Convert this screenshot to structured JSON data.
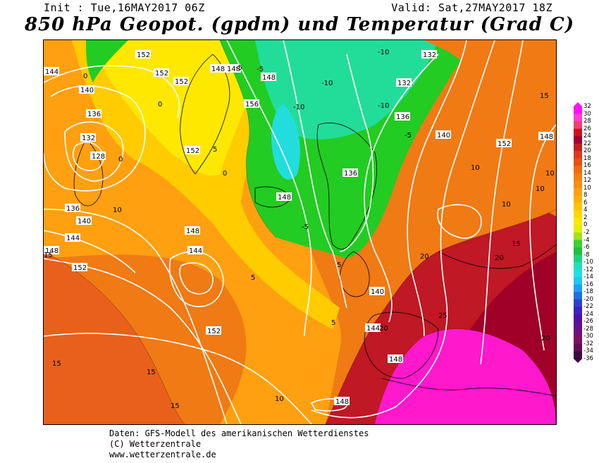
{
  "header": {
    "init": "Init : Tue,16MAY2017 06Z",
    "valid": "Valid: Sat,27MAY2017 18Z",
    "title": "850 hPa Geopot. (gpdm) und Temperatur (Grad C)"
  },
  "map": {
    "geopotential_labels": [
      "152",
      "148",
      "152",
      "152",
      "148",
      "156",
      "152",
      "144",
      "140",
      "136",
      "132",
      "128",
      "136",
      "140",
      "144",
      "148",
      "152",
      "148",
      "144",
      "148",
      "152",
      "136",
      "148",
      "132",
      "132",
      "136",
      "140",
      "140",
      "144",
      "148",
      "152",
      "148",
      "148"
    ],
    "temperature_labels": [
      "-5",
      "-5",
      "-10",
      "-10",
      "-10",
      "-10",
      "-5",
      "-5",
      "0",
      "0",
      "0",
      "0",
      "5",
      "5",
      "5",
      "5",
      "10",
      "10",
      "10",
      "10",
      "10",
      "10",
      "15",
      "15",
      "15",
      "15",
      "15",
      "15",
      "20",
      "20",
      "20",
      "20",
      "25"
    ],
    "colors": {
      "magenta": "#ff18cc",
      "darkred": "#b0002a",
      "red": "#e03a1e",
      "orange": "#f07a14",
      "lightorange": "#ffa010",
      "gold": "#ffcc00",
      "yellow": "#ffe800",
      "green": "#22cc22",
      "cyan": "#22dddd",
      "land_outline": "#000000",
      "isohypse": "#ffffff"
    }
  },
  "color_scale": {
    "ticks": [
      "32",
      "30",
      "28",
      "26",
      "24",
      "22",
      "20",
      "18",
      "16",
      "14",
      "12",
      "10",
      "8",
      "6",
      "4",
      "2",
      "0",
      "-2",
      "-4",
      "-6",
      "-8",
      "-10",
      "-12",
      "-14",
      "-16",
      "-18",
      "-20",
      "-22",
      "-24",
      "-26",
      "-28",
      "-30",
      "-32",
      "-34",
      "-36"
    ],
    "colors": [
      "#ff10ff",
      "#ff40d0",
      "#f04070",
      "#d01020",
      "#a00030",
      "#c02020",
      "#e03a1e",
      "#e85010",
      "#f06a10",
      "#f08010",
      "#f59010",
      "#ffa010",
      "#ffb000",
      "#ffc400",
      "#ffd800",
      "#ffe800",
      "#e0f000",
      "#a0e020",
      "#40d030",
      "#20c040",
      "#20d080",
      "#20e0c0",
      "#20e0e0",
      "#20c8f0",
      "#20a0f0",
      "#2070e0",
      "#3040d0",
      "#4020c0",
      "#5010a8",
      "#601090",
      "#701078",
      "#801060",
      "#601050",
      "#400840"
    ]
  },
  "footer": {
    "line1": "Daten: GFS-Modell des amerikanischen Wetterdienstes",
    "line2": "(C) Wetterzentrale",
    "line3": "www.wetterzentrale.de"
  }
}
